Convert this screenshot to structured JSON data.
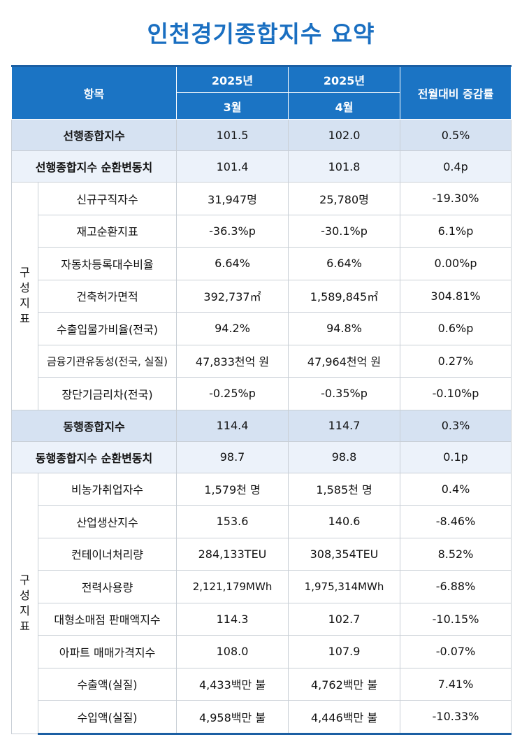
{
  "title": "인천경기종합지수 요약",
  "header": {
    "item": "항목",
    "col_march_year": "2025년",
    "col_march_month": "3월",
    "col_april_year": "2025년",
    "col_april_month": "4월",
    "change": "전월대비 증감률"
  },
  "leading": {
    "composite": {
      "label": "선행종합지수",
      "march": "101.5",
      "april": "102.0",
      "change": "0.5%"
    },
    "cycle": {
      "label": "선행종합지수 순환변동치",
      "march": "101.4",
      "april": "101.8",
      "change": "0.4p"
    },
    "group_label": "구성지표",
    "rows": [
      {
        "label": "신규구직자수",
        "march": "31,947명",
        "april": "25,780명",
        "change": "-19.30%"
      },
      {
        "label": "재고순환지표",
        "march": "-36.3%p",
        "april": "-30.1%p",
        "change": "6.1%p"
      },
      {
        "label": "자동차등록대수비율",
        "march": "6.64%",
        "april": "6.64%",
        "change": "0.00%p"
      },
      {
        "label": "건축허가면적",
        "march": "392,737㎡",
        "april": "1,589,845㎡",
        "change": "304.81%"
      },
      {
        "label": "수출입물가비율(전국)",
        "march": "94.2%",
        "april": "94.8%",
        "change": "0.6%p"
      },
      {
        "label": "금융기관유동성(전국, 실질)",
        "march": "47,833천억 원",
        "april": "47,964천억 원",
        "change": "0.27%"
      },
      {
        "label": "장단기금리차(전국)",
        "march": "-0.25%p",
        "april": "-0.35%p",
        "change": "-0.10%p"
      }
    ]
  },
  "coincident": {
    "composite": {
      "label": "동행종합지수",
      "march": "114.4",
      "april": "114.7",
      "change": "0.3%"
    },
    "cycle": {
      "label": "동행종합지수 순환변동치",
      "march": "98.7",
      "april": "98.8",
      "change": "0.1p"
    },
    "group_label": "구성지표",
    "rows": [
      {
        "label": "비농가취업자수",
        "march": "1,579천 명",
        "april": "1,585천 명",
        "change": "0.4%"
      },
      {
        "label": "산업생산지수",
        "march": "153.6",
        "april": "140.6",
        "change": "-8.46%"
      },
      {
        "label": "컨테이너처리량",
        "march": "284,133TEU",
        "april": "308,354TEU",
        "change": "8.52%"
      },
      {
        "label": "전력사용량",
        "march": "2,121,179MWh",
        "april": "1,975,314MWh",
        "change": "-6.88%"
      },
      {
        "label": "대형소매점 판매액지수",
        "march": "114.3",
        "april": "102.7",
        "change": "-10.15%"
      },
      {
        "label": "아파트 매매가격지수",
        "march": "108.0",
        "april": "107.9",
        "change": "-0.07%"
      },
      {
        "label": "수출액(실질)",
        "march": "4,433백만 불",
        "april": "4,762백만 불",
        "change": "7.41%"
      },
      {
        "label": "수입액(실질)",
        "march": "4,958백만 불",
        "april": "4,446백만 불",
        "change": "-10.33%"
      }
    ]
  }
}
